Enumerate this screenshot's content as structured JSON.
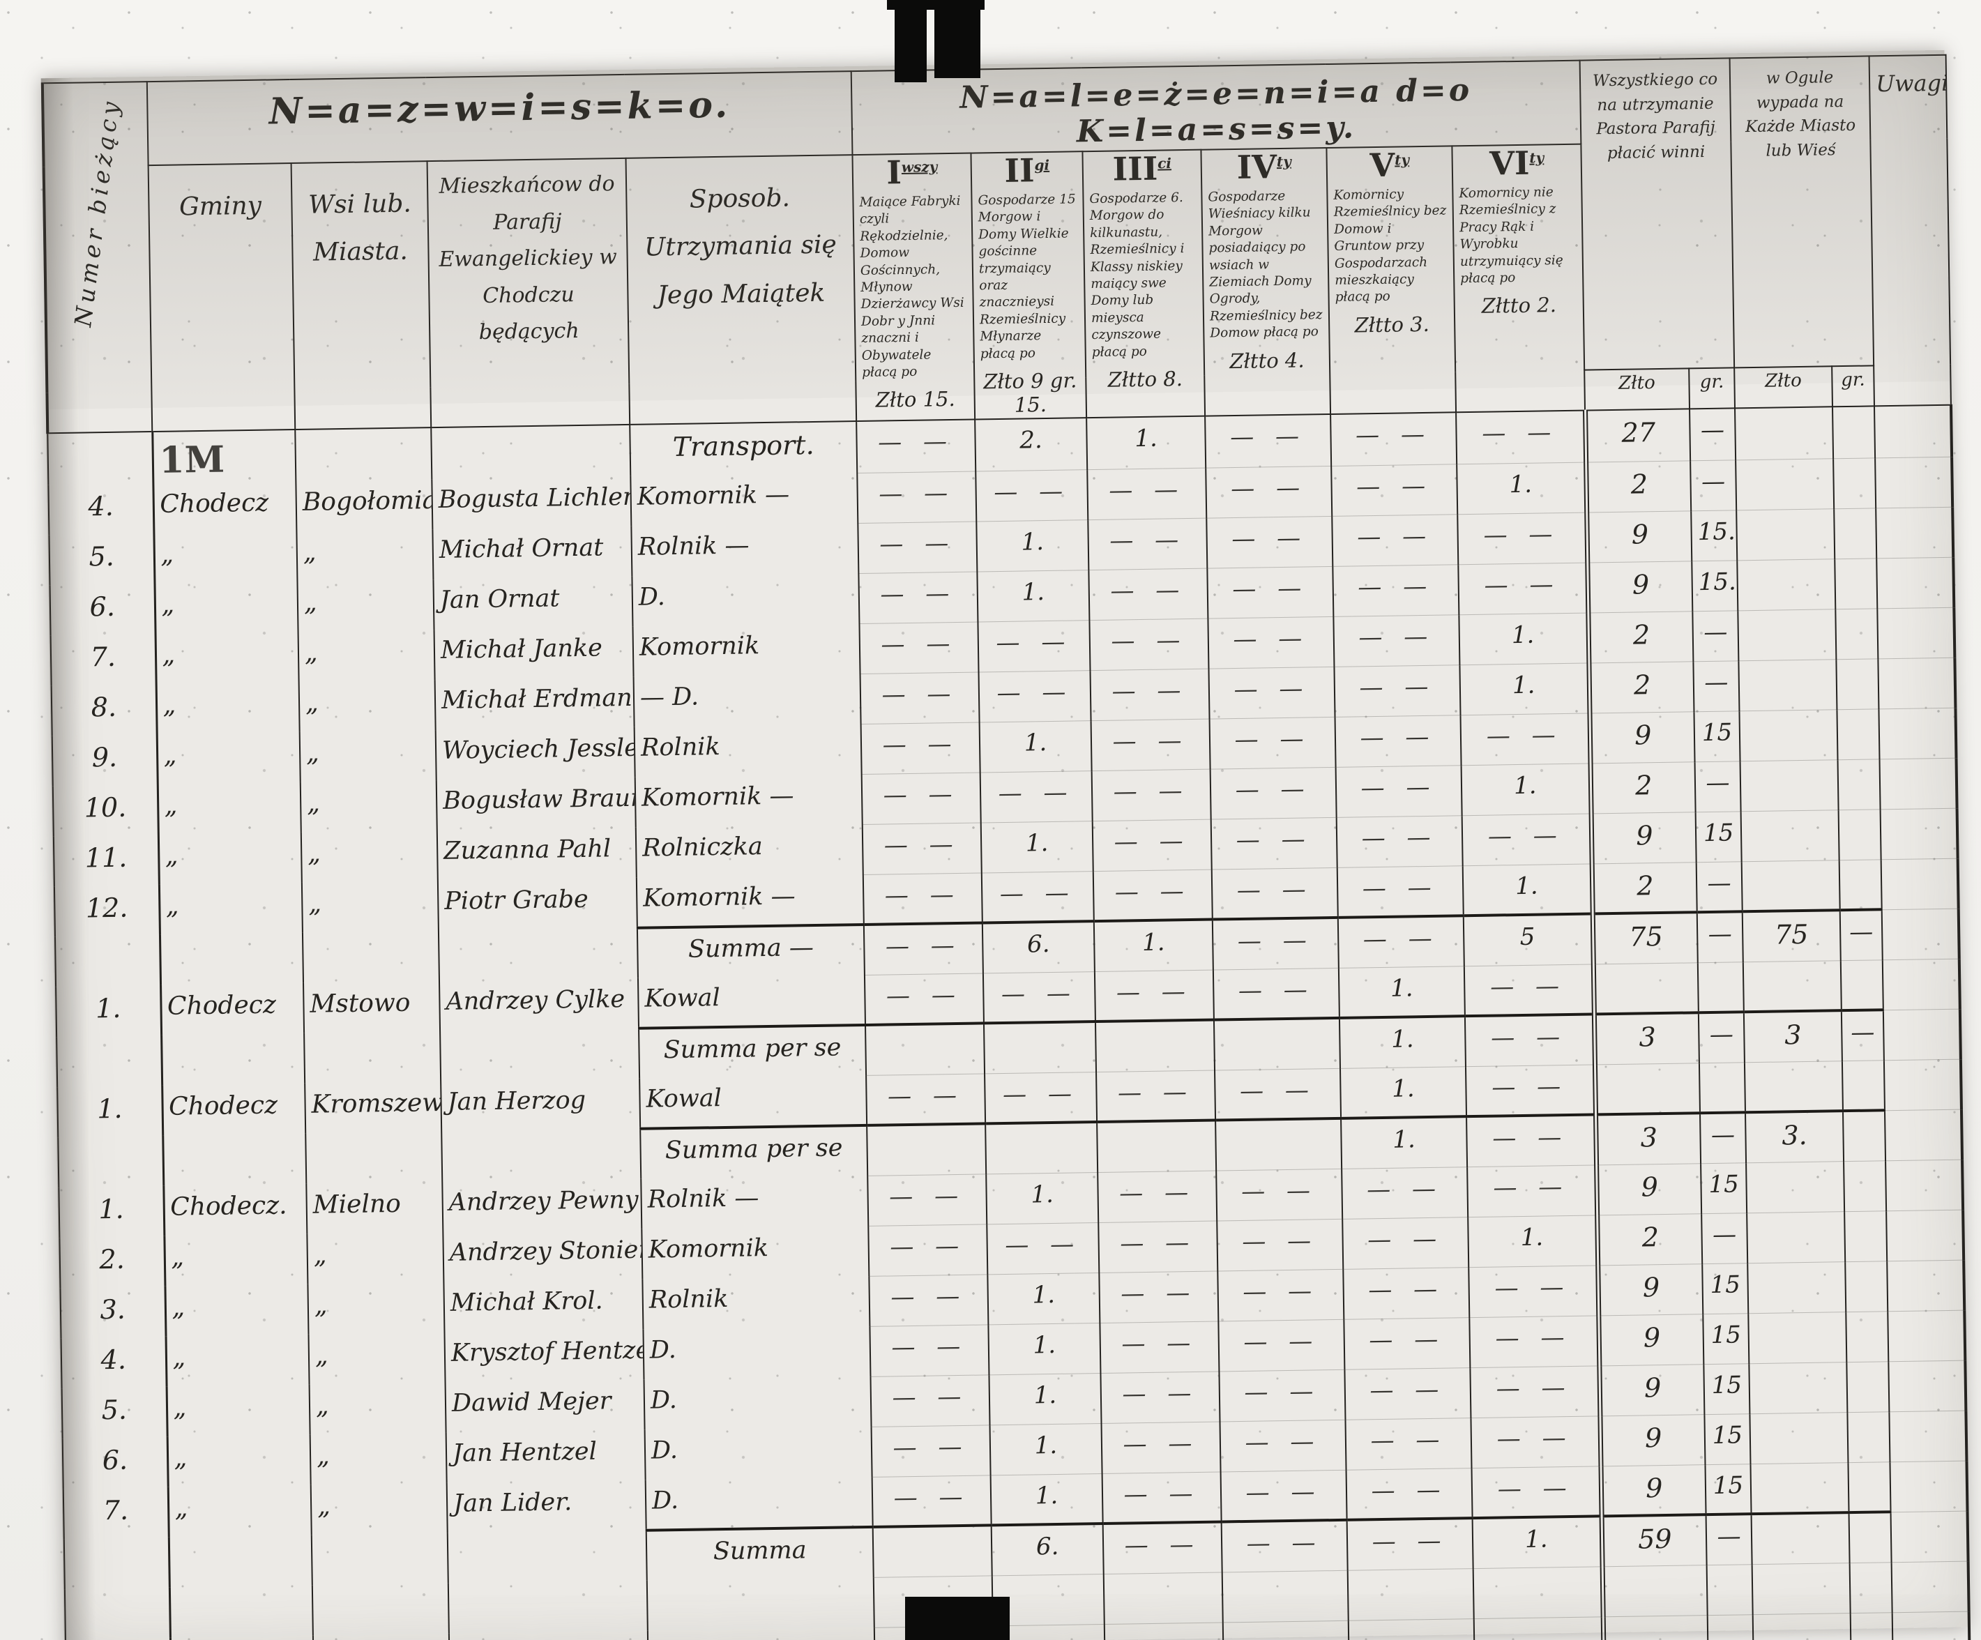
{
  "banner": {
    "nazwisko": "N=a=z=w=i=s=k=o.",
    "nalezenia": "N=a=l=e=ż=e=n=i=a  d=o  K=l=a=s=s=y."
  },
  "columns": {
    "numer": "Numer bieżący",
    "gminy": "Gminy",
    "wsi": "Wsi lub. Miasta.",
    "mieszkancow": "Mieszkańcow do Parafij Ewangelickiey w Chodczu będących",
    "sposob": "Sposob. Utrzymania się Jego Maiątek",
    "pastor": "Wszystkiego co na utrzymanie Pastora Parafij płacić winni",
    "ogol": "w Ogule wypada na Każde Miasto lub Wieś",
    "uwagi": "Uwagi",
    "zloto": "Złto",
    "grosze": "gr."
  },
  "classes": [
    {
      "numeral": "I",
      "suffix": "wszy",
      "description": "Maiące Fabryki czyli Rękodzielnie, Domow Gościnnych, Młynow Dzierżawcy Wsi Dobr y Jnni znaczni i Obywatele płacą po",
      "rate": "Złto 15."
    },
    {
      "numeral": "II",
      "suffix": "gi",
      "description": "Gospodarze 15 Morgow i Domy Wielkie gościnne trzymaiący oraz znacznieysi Rzemieślnicy Młynarze płacą po",
      "rate": "Złto 9 gr. 15."
    },
    {
      "numeral": "III",
      "suffix": "ci",
      "description": "Gospodarze 6. Morgow do kilkunastu, Rzemieślnicy i Klassy niskiey maiący swe Domy lub mieysca czynszowe płacą po",
      "rate": "Złtto 8."
    },
    {
      "numeral": "IV",
      "suffix": "ty",
      "description": "Gospodarze Wieśniacy kilku Morgow posiadaiący po wsiach w Ziemiach Domy Ogrody, Rzemieślnicy bez Domow płacą po",
      "rate": "Złtto 4."
    },
    {
      "numeral": "V",
      "suffix": "ty",
      "description": "Komornicy Rzemieślnicy bez Domow i Gruntow przy Gospodarzach mieszkaiący płacą po",
      "rate": "Złtto 3."
    },
    {
      "numeral": "VI",
      "suffix": "ty",
      "description": "Komornicy nie Rzemieślnicy z Pracy Rąk i Wyrobku utrzymuiący się płacą po",
      "rate": "Złtto 2."
    }
  ],
  "money_subheads": [
    "Złto",
    "gr.",
    "Złto",
    "gr."
  ],
  "rows": [
    {
      "t": "transport",
      "c": [
        "",
        "1M",
        "",
        "",
        "Transport.",
        "— —",
        "2.",
        "1.",
        "— —",
        "— —",
        "— —",
        "27",
        "—",
        "",
        "",
        ""
      ]
    },
    {
      "t": "data",
      "c": [
        "4.",
        "Chodecz",
        "Bogołomia",
        "Bogusta Lichler",
        "Komornik —",
        "— —",
        "— —",
        "— —",
        "— —",
        "— —",
        "1.",
        "2",
        "—",
        "",
        "",
        ""
      ]
    },
    {
      "t": "data",
      "c": [
        "5.",
        "„",
        "„",
        "Michał Ornat",
        "Rolnik —",
        "— —",
        "1.",
        "— —",
        "— —",
        "— —",
        "— —",
        "9",
        "15.",
        "",
        "",
        ""
      ]
    },
    {
      "t": "data",
      "c": [
        "6.",
        "„",
        "„",
        "Jan Ornat",
        "D.",
        "— —",
        "1.",
        "— —",
        "— —",
        "— —",
        "— —",
        "9",
        "15.",
        "",
        "",
        ""
      ]
    },
    {
      "t": "data",
      "c": [
        "7.",
        "„",
        "„",
        "Michał Janke",
        "Komornik",
        "— —",
        "— —",
        "— —",
        "— —",
        "— —",
        "1.",
        "2",
        "—",
        "",
        "",
        ""
      ]
    },
    {
      "t": "data",
      "c": [
        "8.",
        "„",
        "„",
        "Michał Erdman",
        "— D.",
        "— —",
        "— —",
        "— —",
        "— —",
        "— —",
        "1.",
        "2",
        "—",
        "",
        "",
        ""
      ]
    },
    {
      "t": "data",
      "c": [
        "9.",
        "„",
        "„",
        "Woyciech Jessle",
        "Rolnik",
        "— —",
        "1.",
        "— —",
        "— —",
        "— —",
        "— —",
        "9",
        "15",
        "",
        "",
        ""
      ]
    },
    {
      "t": "data",
      "c": [
        "10.",
        "„",
        "„",
        "Bogusław Braun",
        "Komornik —",
        "— —",
        "— —",
        "— —",
        "— —",
        "— —",
        "1.",
        "2",
        "—",
        "",
        "",
        ""
      ]
    },
    {
      "t": "data",
      "c": [
        "11.",
        "„",
        "„",
        "Zuzanna Pahl",
        "Rolniczka",
        "— —",
        "1.",
        "— —",
        "— —",
        "— —",
        "— —",
        "9",
        "15",
        "",
        "",
        ""
      ]
    },
    {
      "t": "data",
      "c": [
        "12.",
        "„",
        "„",
        "Piotr Grabe",
        "Komornik —",
        "— —",
        "— —",
        "— —",
        "— —",
        "— —",
        "1.",
        "2",
        "—",
        "",
        "",
        ""
      ]
    },
    {
      "t": "summa",
      "c": [
        "",
        "",
        "",
        "",
        "Summa —",
        "— —",
        "6.",
        "1.",
        "— —",
        "— —",
        "5",
        "75",
        "—",
        "75",
        "—",
        ""
      ]
    },
    {
      "t": "data",
      "c": [
        "1.",
        "Chodecz",
        "Mstowo",
        "Andrzey Cylke",
        "Kowal",
        "— —",
        "— —",
        "— —",
        "— —",
        "1.",
        "— —",
        "",
        "",
        "",
        "",
        ""
      ]
    },
    {
      "t": "summa",
      "c": [
        "",
        "",
        "",
        "",
        "Summa per se",
        "",
        "",
        "",
        "",
        "1.",
        "— —",
        "3",
        "—",
        "3",
        "—",
        ""
      ]
    },
    {
      "t": "data",
      "c": [
        "1.",
        "Chodecz",
        "Kromszewice",
        "Jan Herzog",
        "Kowal",
        "— —",
        "— —",
        "— —",
        "— —",
        "1.",
        "— —",
        "",
        "",
        "",
        "",
        ""
      ]
    },
    {
      "t": "summa",
      "c": [
        "",
        "",
        "",
        "",
        "Summa per se",
        "",
        "",
        "",
        "",
        "1.",
        "— —",
        "3",
        "—",
        "3.",
        "",
        ""
      ]
    },
    {
      "t": "data",
      "c": [
        "1.",
        "Chodecz.",
        "Mielno",
        "Andrzey Pewny",
        "Rolnik —",
        "— —",
        "1.",
        "— —",
        "— —",
        "— —",
        "— —",
        "9",
        "15",
        "",
        "",
        ""
      ]
    },
    {
      "t": "data",
      "c": [
        "2.",
        "„",
        "„",
        "Andrzey Stonier",
        "Komornik",
        "— —",
        "— —",
        "— —",
        "— —",
        "— —",
        "1.",
        "2",
        "—",
        "",
        "",
        ""
      ]
    },
    {
      "t": "data",
      "c": [
        "3.",
        "„",
        "„",
        "Michał Krol.",
        "Rolnik",
        "— —",
        "1.",
        "— —",
        "— —",
        "— —",
        "— —",
        "9",
        "15",
        "",
        "",
        ""
      ]
    },
    {
      "t": "data",
      "c": [
        "4.",
        "„",
        "„",
        "Krysztof Hentzel",
        "D.",
        "— —",
        "1.",
        "— —",
        "— —",
        "— —",
        "— —",
        "9",
        "15",
        "",
        "",
        ""
      ]
    },
    {
      "t": "data",
      "c": [
        "5.",
        "„",
        "„",
        "Dawid Mejer",
        "D.",
        "— —",
        "1.",
        "— —",
        "— —",
        "— —",
        "— —",
        "9",
        "15",
        "",
        "",
        ""
      ]
    },
    {
      "t": "data",
      "c": [
        "6.",
        "„",
        "„",
        "Jan Hentzel",
        "D.",
        "— —",
        "1.",
        "— —",
        "— —",
        "— —",
        "— —",
        "9",
        "15",
        "",
        "",
        ""
      ]
    },
    {
      "t": "data",
      "c": [
        "7.",
        "„",
        "„",
        "Jan Lider.",
        "D.",
        "— —",
        "1.",
        "— —",
        "— —",
        "— —",
        "— —",
        "9",
        "15",
        "",
        "",
        ""
      ]
    },
    {
      "t": "summa",
      "c": [
        "",
        "",
        "",
        "",
        "Summa",
        "",
        "6.",
        "— —",
        "— —",
        "— —",
        "1.",
        "59",
        "—",
        "",
        "",
        ""
      ]
    },
    {
      "t": "data",
      "c": [
        "",
        "",
        "",
        "",
        "",
        "",
        "",
        "",
        "",
        "",
        "",
        "",
        "",
        "",
        "",
        ""
      ]
    },
    {
      "t": "data",
      "c": [
        "",
        "",
        "",
        "",
        "",
        "",
        "",
        "",
        "",
        "",
        "",
        "",
        "",
        "",
        "",
        ""
      ]
    }
  ]
}
